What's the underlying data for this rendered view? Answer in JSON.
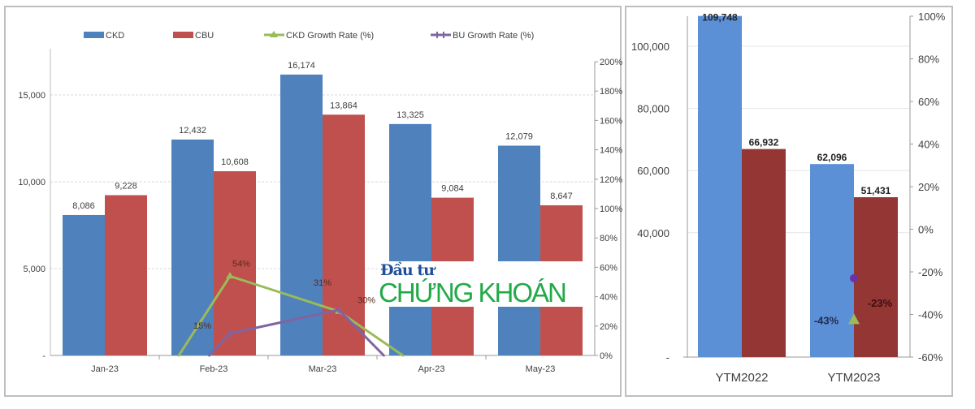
{
  "chart_data": [
    {
      "type": "bar",
      "categories": [
        "Jan-23",
        "Feb-23",
        "Mar-23",
        "Apr-23",
        "May-23"
      ],
      "series": [
        {
          "name": "CKD",
          "kind": "bar",
          "axis": "left",
          "color": "#4f81bd",
          "values": [
            8086,
            12432,
            16174,
            13325,
            12079
          ],
          "labels": [
            "8,086",
            "12,432",
            "16,174",
            "13,325",
            "12,079"
          ]
        },
        {
          "name": "CBU",
          "kind": "bar",
          "axis": "left",
          "color": "#c0504d",
          "values": [
            9228,
            10608,
            13864,
            9084,
            8647
          ],
          "labels": [
            "9,228",
            "10,608",
            "13,864",
            "9,084",
            "8,647"
          ]
        },
        {
          "name": "CKD Growth Rate (%)",
          "kind": "line",
          "axis": "right",
          "color": "#9bbb59",
          "values": [
            -61,
            54,
            30,
            -21,
            null
          ],
          "labels": [
            null,
            "54%",
            "30%",
            null,
            null
          ]
        },
        {
          "name": "BU Growth Rate (%)",
          "kind": "line",
          "axis": "right",
          "color": "#8064a2",
          "values": [
            -64,
            15,
            31,
            -44,
            null
          ],
          "labels": [
            null,
            "15%",
            "31%",
            null,
            null
          ]
        }
      ],
      "left_axis": {
        "ylim": [
          0,
          17000
        ],
        "ticks": [
          0,
          5000,
          10000,
          15000
        ],
        "tick_labels": [
          "-",
          "5,000",
          "10,000",
          "15,000"
        ]
      },
      "right_axis": {
        "ylim": [
          0,
          200
        ],
        "ticks": [
          0,
          20,
          40,
          60,
          80,
          100,
          120,
          140,
          160,
          180,
          200
        ],
        "tick_labels": [
          "0%",
          "20%",
          "40%",
          "60%",
          "80%",
          "100%",
          "120%",
          "140%",
          "160%",
          "180%",
          "200%"
        ]
      },
      "legend": "top",
      "grid": true
    },
    {
      "type": "bar",
      "categories": [
        "YTM2022",
        "YTM2023"
      ],
      "series": [
        {
          "name": "CKD",
          "kind": "bar",
          "axis": "left",
          "color": "#5b8fd6",
          "values": [
            109748,
            62096
          ],
          "labels": [
            "109,748",
            "62,096"
          ]
        },
        {
          "name": "CBU",
          "kind": "bar",
          "axis": "left",
          "color": "#943634",
          "values": [
            66932,
            51431
          ],
          "labels": [
            "66,932",
            "51,431"
          ]
        },
        {
          "name": "CKD Growth Rate (%)",
          "kind": "point",
          "axis": "right",
          "color": "#9bbb59",
          "values": [
            null,
            -43
          ],
          "labels": [
            null,
            "-43%"
          ]
        },
        {
          "name": "BU Growth Rate (%)",
          "kind": "point",
          "axis": "right",
          "color": "#7030a0",
          "values": [
            null,
            -23
          ],
          "labels": [
            null,
            "-23%"
          ]
        }
      ],
      "left_axis": {
        "ylim": [
          0,
          110000
        ],
        "ticks": [
          0,
          40000,
          60000,
          80000,
          100000
        ],
        "tick_labels": [
          "-",
          "40,000",
          "60,000",
          "80,000",
          "100,000"
        ]
      },
      "right_axis": {
        "ylim": [
          -60,
          100
        ],
        "ticks": [
          -60,
          -40,
          -20,
          0,
          20,
          40,
          60,
          80,
          100
        ],
        "tick_labels": [
          "-60%",
          "-40%",
          "-20%",
          "0%",
          "20%",
          "40%",
          "60%",
          "80%",
          "100%"
        ]
      },
      "grid": true
    }
  ],
  "watermark": {
    "line1": "Đầu tư",
    "line2": "CHỨNG KHOÁN"
  }
}
